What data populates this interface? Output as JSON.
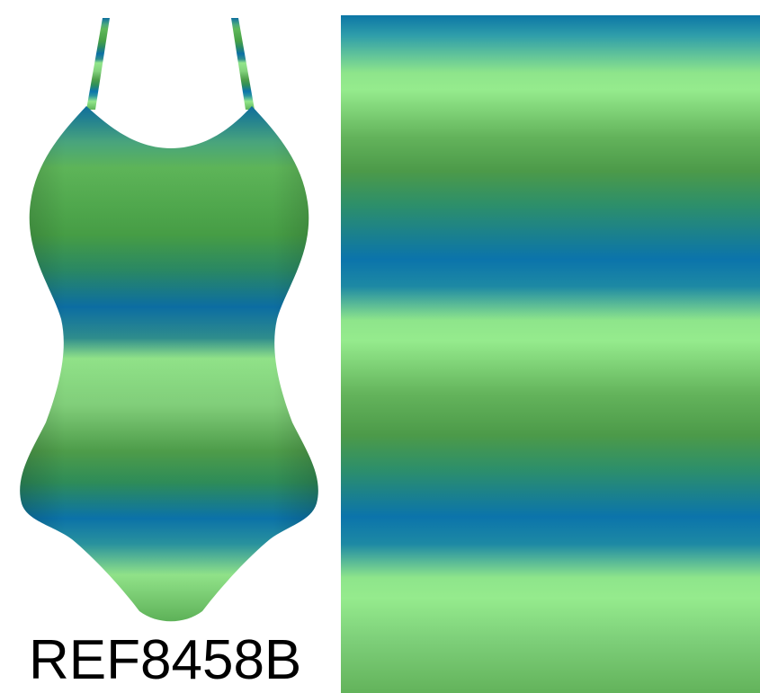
{
  "product": {
    "reference_code": "REF8458B"
  },
  "colors": {
    "blue": "#0b74ab",
    "light_green": "#95eb8d",
    "mid_green": "#4c9a49",
    "text": "#000000"
  }
}
